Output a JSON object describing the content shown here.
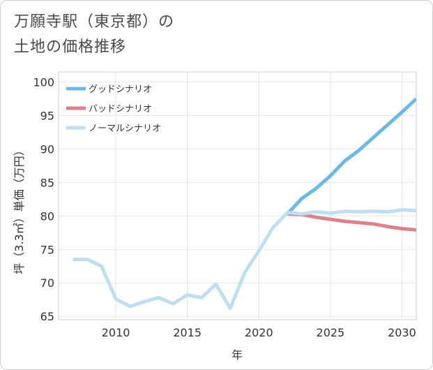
{
  "chart_data": {
    "type": "line",
    "title_line1": "万願寺駅（東京都）の",
    "title_line2": "土地の価格推移",
    "xlabel": "年",
    "ylabel": "坪（3.3㎡）単価（万円）",
    "xlim": [
      2006,
      2031
    ],
    "ylim": [
      64.5,
      101.5
    ],
    "xticks": [
      2010,
      2015,
      2020,
      2025,
      2030
    ],
    "yticks": [
      65,
      70,
      75,
      80,
      85,
      90,
      95,
      100
    ],
    "legend_position": "top-left",
    "series": [
      {
        "name": "グッドシナリオ",
        "color": "#6cb9e8",
        "x": [
          2022,
          2023,
          2024,
          2025,
          2026,
          2027,
          2028,
          2029,
          2030,
          2031
        ],
        "values": [
          80.3,
          82.6,
          84.1,
          86.0,
          88.2,
          89.8,
          91.7,
          93.6,
          95.5,
          97.5
        ]
      },
      {
        "name": "バッドシナリオ",
        "color": "#d9838a",
        "x": [
          2022,
          2023,
          2024,
          2025,
          2026,
          2027,
          2028,
          2029,
          2030,
          2031
        ],
        "values": [
          80.3,
          80.2,
          79.8,
          79.5,
          79.2,
          79.0,
          78.8,
          78.4,
          78.1,
          77.9
        ]
      },
      {
        "name": "ノーマルシナリオ",
        "color": "#bfdff0",
        "x": [
          2007,
          2008,
          2009,
          2010,
          2011,
          2012,
          2013,
          2014,
          2015,
          2016,
          2017,
          2018,
          2019,
          2020,
          2021,
          2022,
          2023,
          2024,
          2025,
          2026,
          2027,
          2028,
          2029,
          2030,
          2031
        ],
        "values": [
          73.5,
          73.5,
          72.5,
          67.6,
          66.5,
          67.2,
          67.8,
          66.9,
          68.2,
          67.8,
          69.8,
          66.2,
          71.5,
          74.8,
          78.3,
          80.5,
          80.3,
          80.6,
          80.4,
          80.7,
          80.6,
          80.7,
          80.6,
          80.9,
          80.8
        ]
      }
    ]
  }
}
